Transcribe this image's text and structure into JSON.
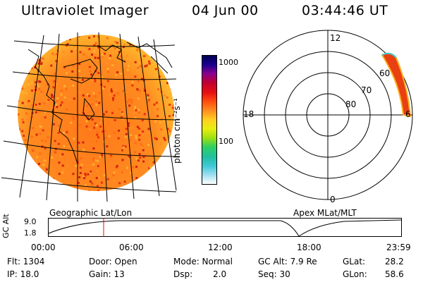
{
  "header": {
    "title": "Ultraviolet Imager",
    "date": "04 Jun 00",
    "time": "03:44:46 UT"
  },
  "panels": {
    "left_label": "Geographic Lat/Lon",
    "right_label": "Apex MLat/MLT"
  },
  "colorbar": {
    "unit_label": "photon cm⁻²s⁻¹",
    "ticks": [
      "1000",
      "100"
    ],
    "colors": [
      "#000050",
      "#1a0090",
      "#8a0090",
      "#c00030",
      "#e81010",
      "#ff5010",
      "#ff9020",
      "#ffd020",
      "#e8ee10",
      "#a0e010",
      "#30d060",
      "#20c0a0",
      "#40c8d8",
      "#a0e0f0",
      "#ffffff"
    ]
  },
  "polar": {
    "mlt_labels": {
      "top": "12",
      "left": "18",
      "bottom": "0",
      "right": "6"
    },
    "lat_labels": [
      "60",
      "70",
      "80"
    ]
  },
  "timeline": {
    "axis_label": "GC Alt",
    "y_ticks": [
      "9.0",
      "1.8"
    ],
    "x_ticks": [
      "00:00",
      "06:00",
      "12:00",
      "18:00",
      "23:59"
    ],
    "marker_fraction": 0.156
  },
  "info": {
    "row1": {
      "flt": "Flt: 1304",
      "door": "Door: Open",
      "mode": "Mode: Normal",
      "gcalt": "GC Alt: 7.9 Re",
      "glat_label": "GLat:",
      "glat_value": "28.2"
    },
    "row2": {
      "ip": "IP: 18.0",
      "gain": "Gain: 13",
      "dsp_label": "Dsp:",
      "dsp_value": "2.0",
      "seq": "Seq: 30",
      "glon_label": "GLon:",
      "glon_value": "58.6"
    }
  },
  "accent": {
    "marker": "#ff0000"
  }
}
